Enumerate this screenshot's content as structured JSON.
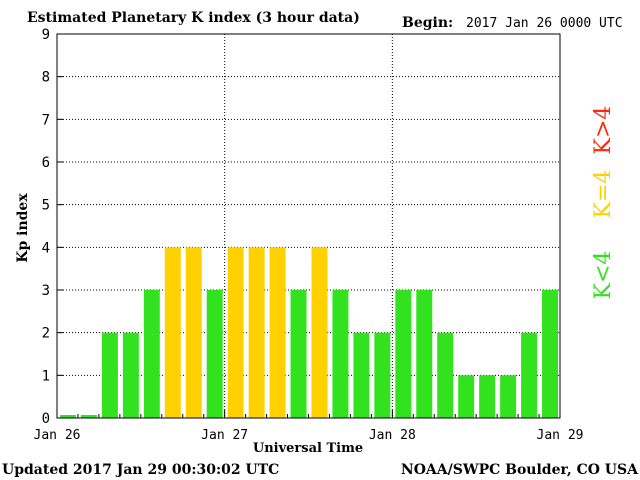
{
  "chart_data": {
    "type": "bar",
    "title": "Estimated Planetary K index (3 hour data)",
    "begin_label": "Begin:",
    "begin_value": "2017 Jan 26 0000 UTC",
    "xlabel": "Universal Time",
    "ylabel": "Kp index",
    "ylim": [
      0,
      9
    ],
    "y_ticks": [
      "0",
      "1",
      "2",
      "3",
      "4",
      "5",
      "6",
      "7",
      "8",
      "9"
    ],
    "x_tick_labels": [
      "Jan 26",
      "Jan 27",
      "Jan 28",
      "Jan 29"
    ],
    "interval_hours": 3,
    "values": [
      0,
      0,
      2,
      2,
      3,
      4,
      4,
      3,
      4,
      4,
      4,
      3,
      4,
      3,
      2,
      2,
      3,
      3,
      2,
      1,
      1,
      1,
      2,
      3
    ],
    "thresholds_legend": [
      {
        "label": "K<4",
        "color": "#33e21e"
      },
      {
        "label": "K=4",
        "color": "#ffd100"
      },
      {
        "label": "K>4",
        "color": "#ff2a0a"
      }
    ],
    "colors": {
      "low": "#33e21e",
      "equal": "#ffd100",
      "high": "#ff2a0a"
    },
    "grid": "dotted"
  },
  "footer": {
    "updated": "Updated 2017 Jan 29 00:30:02 UTC",
    "source": "NOAA/SWPC Boulder, CO USA"
  }
}
